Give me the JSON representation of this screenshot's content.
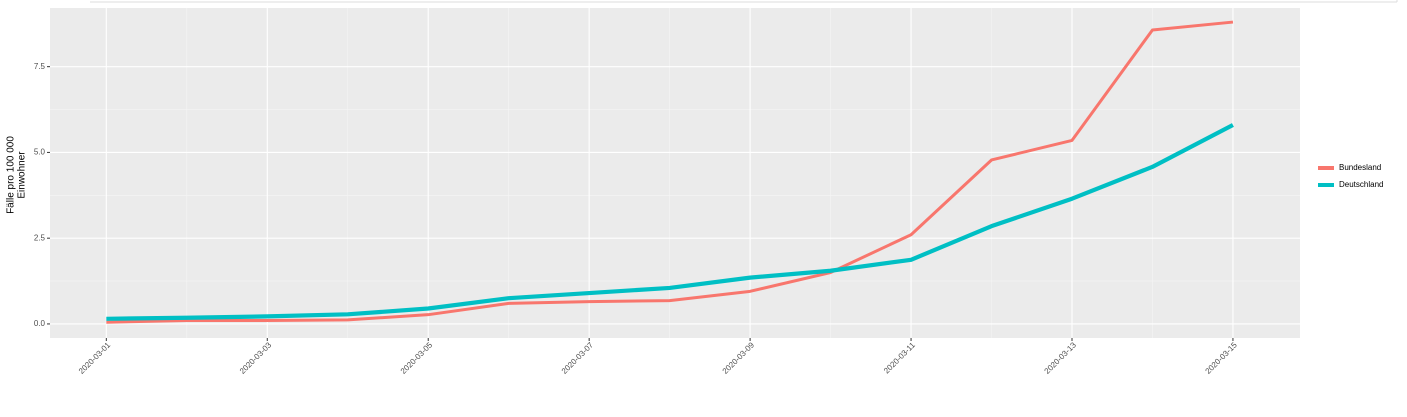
{
  "chart_data": {
    "type": "line",
    "ylabel": [
      "Fälle pro 100 000",
      "Einwohner"
    ],
    "x": [
      "2020-03-01",
      "2020-03-02",
      "2020-03-03",
      "2020-03-04",
      "2020-03-05",
      "2020-03-06",
      "2020-03-07",
      "2020-03-08",
      "2020-03-09",
      "2020-03-10",
      "2020-03-11",
      "2020-03-12",
      "2020-03-13",
      "2020-03-14",
      "2020-03-15"
    ],
    "series": [
      {
        "name": "Bundesland",
        "color": "#F8766D",
        "values": [
          0.05,
          0.1,
          0.1,
          0.12,
          0.27,
          0.6,
          0.65,
          0.68,
          0.95,
          1.5,
          2.6,
          4.78,
          5.35,
          8.57,
          8.8
        ]
      },
      {
        "name": "Deutschland",
        "color": "#00BFC4",
        "values": [
          0.15,
          0.18,
          0.22,
          0.28,
          0.45,
          0.75,
          0.9,
          1.05,
          1.35,
          1.55,
          1.87,
          2.85,
          3.65,
          4.58,
          5.8
        ]
      }
    ],
    "xlim": [
      "2020-02-29T07:12",
      "2020-03-15T20:00"
    ],
    "xticks": [
      "2020-03-01",
      "2020-03-03",
      "2020-03-05",
      "2020-03-07",
      "2020-03-09",
      "2020-03-11",
      "2020-03-13",
      "2020-03-15"
    ],
    "ylim": [
      -0.41,
      9.21
    ],
    "yticks": [
      {
        "value": 0,
        "label": "0.0"
      },
      2.5,
      {
        "value": 5,
        "label": "5.0"
      },
      7.5
    ],
    "grid": true,
    "legend": "right"
  }
}
